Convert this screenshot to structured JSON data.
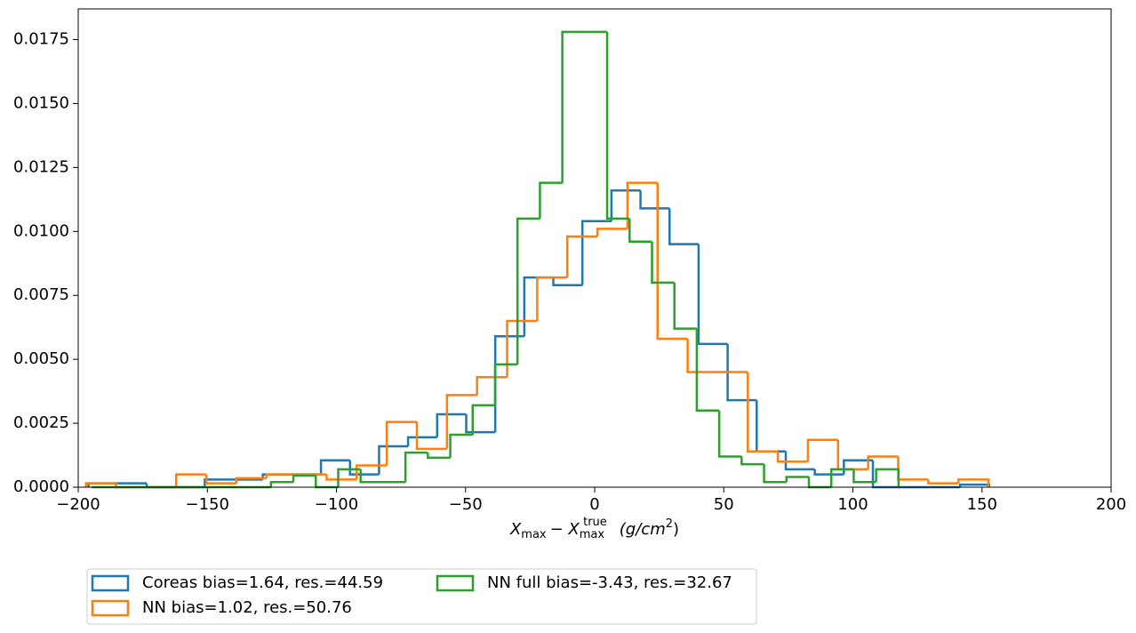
{
  "chart_data": {
    "type": "histogram",
    "xlabel": [
      "X",
      "max",
      "− X",
      "max",
      "true",
      "(g/cm",
      "2",
      ")"
    ],
    "xlim": [
      -200,
      200
    ],
    "xticks": [
      {
        "value": -200,
        "label": "−200"
      },
      {
        "value": -150,
        "label": "−150"
      },
      {
        "value": -100,
        "label": "−100"
      },
      {
        "value": -50,
        "label": "−50"
      },
      0,
      50,
      100,
      150,
      200
    ],
    "ylim": [
      0,
      0.0187
    ],
    "yticks": [
      {
        "value": 0,
        "label": "0.0000"
      },
      {
        "value": 0.0025,
        "label": "0.0025"
      },
      {
        "value": 0.005,
        "label": "0.0050"
      },
      {
        "value": 0.0075,
        "label": "0.0075"
      },
      {
        "value": 0.01,
        "label": "0.0100"
      },
      {
        "value": 0.0125,
        "label": "0.0125"
      },
      {
        "value": 0.015,
        "label": "0.0150"
      },
      {
        "value": 0.0175,
        "label": "0.0175"
      }
    ],
    "grid": false,
    "legend_loc": "below",
    "series": [
      {
        "name": "Coreas bias=1.64, res.=44.59",
        "color": "#1f77b4",
        "bins": [
          -196,
          -184.75,
          -173.5,
          -162.25,
          -151,
          -139.75,
          -128.5,
          -117.25,
          -106,
          -94.75,
          -83.5,
          -72.25,
          -61,
          -49.75,
          -38.5,
          -27.25,
          -16,
          -4.75,
          6.5,
          17.75,
          29,
          40.25,
          51.5,
          62.75,
          74,
          85.25,
          96.5,
          107.75,
          119,
          130.25,
          141.5,
          152.75
        ],
        "values": [
          0.00015,
          0.00015,
          0,
          0,
          0.0003,
          0.0003,
          0.0005,
          0.0005,
          0.00105,
          0.0005,
          0.0016,
          0.00195,
          0.00285,
          0.00215,
          0.0059,
          0.0082,
          0.0079,
          0.0104,
          0.0116,
          0.0109,
          0.0095,
          0.0056,
          0.0034,
          0.0014,
          0.0007,
          0.0005,
          0.00105,
          0,
          0,
          0,
          0.0001
        ]
      },
      {
        "name": "NN bias=1.02, res.=50.76",
        "color": "#ff7f0e",
        "bins": [
          -197,
          -185.35,
          -173.7,
          -162.05,
          -150.4,
          -138.75,
          -127.1,
          -115.45,
          -103.8,
          -92.15,
          -80.5,
          -68.85,
          -57.2,
          -45.55,
          -33.9,
          -22.25,
          -10.6,
          1.05,
          12.7,
          24.35,
          36,
          47.65,
          59.3,
          70.95,
          82.6,
          94.25,
          105.9,
          117.55,
          129.2,
          140.85,
          152.5
        ],
        "values": [
          0.00015,
          0,
          0,
          0.0005,
          0.00015,
          0.00035,
          0.0005,
          0.0005,
          0.0003,
          0.00085,
          0.00255,
          0.0015,
          0.0036,
          0.0043,
          0.0065,
          0.0082,
          0.0098,
          0.0101,
          0.0119,
          0.0058,
          0.0045,
          0.0045,
          0.0014,
          0.001,
          0.00185,
          0.0007,
          0.0012,
          0.0003,
          0.00015,
          0.0003
        ]
      },
      {
        "name": "NN full bias=-3.43, res.=32.67",
        "color": "#2ca02c",
        "bins": [
          -194.8,
          -186.12,
          -177.44,
          -168.76,
          -160.08,
          -151.4,
          -142.72,
          -134.04,
          -125.36,
          -116.68,
          -108,
          -99.32,
          -90.64,
          -81.96,
          -73.28,
          -64.6,
          -55.92,
          -47.24,
          -38.56,
          -29.88,
          -21.2,
          -12.52,
          -3.84,
          4.84,
          13.52,
          22.2,
          30.88,
          39.56,
          48.24,
          56.92,
          65.6,
          74.28,
          82.96,
          91.64,
          100.32,
          109,
          117.68
        ],
        "values": [
          0,
          0,
          0,
          0,
          0,
          0,
          0,
          0,
          0.0002,
          0.00045,
          0,
          0.0007,
          0.0002,
          0.0002,
          0.00135,
          0.00115,
          0.00205,
          0.0032,
          0.0048,
          0.0105,
          0.0119,
          0.0178,
          0.0178,
          0.0105,
          0.0096,
          0.008,
          0.0062,
          0.003,
          0.0012,
          0.0009,
          0.0002,
          0.0004,
          0,
          0.0007,
          0.0002,
          0.0007
        ]
      }
    ]
  }
}
